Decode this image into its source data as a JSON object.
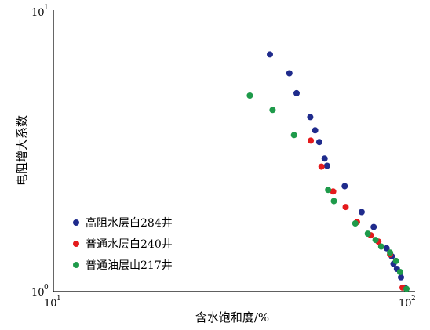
{
  "chart_data": {
    "type": "scatter",
    "title": "",
    "xlabel": "含水饱和度/%",
    "ylabel": "电阻增大系数",
    "x_scale": "log",
    "y_scale": "log",
    "xlim": [
      10,
      100
    ],
    "ylim": [
      1,
      10
    ],
    "x_ticks": [
      {
        "base": "10",
        "exp": "1"
      },
      {
        "base": "10",
        "exp": "2"
      }
    ],
    "y_ticks": [
      {
        "base": "10",
        "exp": "0"
      },
      {
        "base": "10",
        "exp": "1"
      }
    ],
    "grid": false,
    "legend_position": "lower-left",
    "series": [
      {
        "name": "高阻水层白284井",
        "color": "#1f2b8c",
        "points": [
          [
            40.8,
            6.95
          ],
          [
            46.3,
            5.95
          ],
          [
            48.5,
            5.05
          ],
          [
            53.0,
            4.15
          ],
          [
            54.7,
            3.72
          ],
          [
            56.2,
            3.38
          ],
          [
            58.2,
            2.95
          ],
          [
            59.1,
            2.78
          ],
          [
            66.3,
            2.35
          ],
          [
            74.0,
            1.9
          ],
          [
            80.0,
            1.68
          ],
          [
            87.0,
            1.41
          ],
          [
            90.0,
            1.32
          ],
          [
            91.0,
            1.24
          ],
          [
            93.0,
            1.19
          ],
          [
            95.5,
            1.11
          ],
          [
            98.0,
            1.02
          ]
        ]
      },
      {
        "name": "普通水层白240井",
        "color": "#e41a1c",
        "points": [
          [
            53.2,
            3.42
          ],
          [
            57.0,
            2.76
          ],
          [
            61.5,
            2.25
          ],
          [
            66.7,
            1.98
          ],
          [
            71.8,
            1.75
          ],
          [
            78.5,
            1.57
          ],
          [
            82.5,
            1.49
          ],
          [
            89.0,
            1.34
          ],
          [
            96.5,
            1.02
          ]
        ]
      },
      {
        "name": "普通油层山217井",
        "color": "#1e9a4a",
        "points": [
          [
            35.8,
            4.95
          ],
          [
            41.5,
            4.4
          ],
          [
            47.7,
            3.58
          ],
          [
            59.5,
            2.28
          ],
          [
            61.8,
            2.08
          ],
          [
            71.0,
            1.73
          ],
          [
            77.0,
            1.59
          ],
          [
            81.0,
            1.51
          ],
          [
            84.0,
            1.43
          ],
          [
            89.0,
            1.36
          ],
          [
            92.5,
            1.27
          ],
          [
            95.0,
            1.16
          ],
          [
            99.0,
            1.01
          ]
        ]
      }
    ]
  }
}
